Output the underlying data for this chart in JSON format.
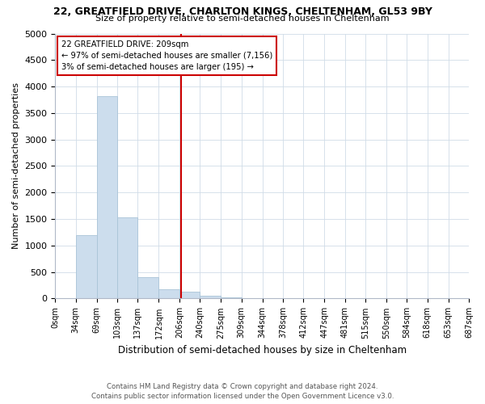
{
  "title1": "22, GREATFIELD DRIVE, CHARLTON KINGS, CHELTENHAM, GL53 9BY",
  "title2": "Size of property relative to semi-detached houses in Cheltenham",
  "xlabel": "Distribution of semi-detached houses by size in Cheltenham",
  "ylabel": "Number of semi-detached properties",
  "footer1": "Contains HM Land Registry data © Crown copyright and database right 2024.",
  "footer2": "Contains public sector information licensed under the Open Government Licence v3.0.",
  "bar_color": "#ccdded",
  "bar_edge_color": "#aac4d8",
  "vline_color": "#cc0000",
  "annotation_box_color": "#cc0000",
  "annotation_text": "22 GREATFIELD DRIVE: 209sqm\n← 97% of semi-detached houses are smaller (7,156)\n3% of semi-detached houses are larger (195) →",
  "property_size": 209,
  "bin_edges": [
    0,
    34,
    69,
    103,
    137,
    172,
    206,
    240,
    275,
    309,
    344,
    378,
    412,
    447,
    481,
    515,
    550,
    584,
    618,
    653,
    687
  ],
  "bin_counts": [
    5,
    1200,
    3820,
    1530,
    400,
    170,
    130,
    55,
    25,
    12,
    7,
    4,
    2,
    1,
    1,
    1,
    0,
    0,
    0,
    0
  ],
  "ylim": [
    0,
    5000
  ],
  "yticks": [
    0,
    500,
    1000,
    1500,
    2000,
    2500,
    3000,
    3500,
    4000,
    4500,
    5000
  ],
  "background_color": "#ffffff",
  "grid_color": "#d0dce8"
}
